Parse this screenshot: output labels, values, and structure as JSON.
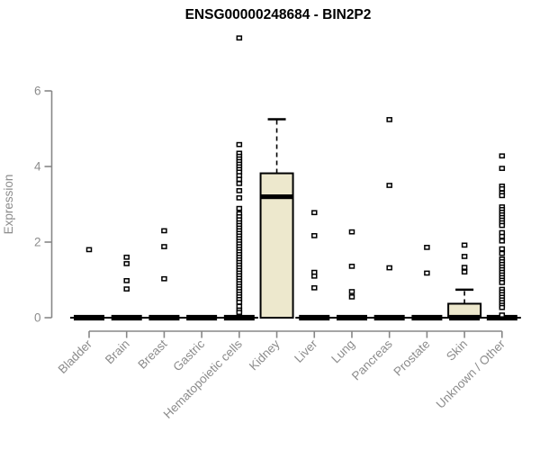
{
  "chart_data": {
    "type": "boxplot",
    "title": "ENSG00000248684 - BIN2P2",
    "ylabel": "Expression",
    "xlabel": "",
    "ylim": [
      0,
      6
    ],
    "yticks": [
      0,
      2,
      4,
      6
    ],
    "grid": false,
    "legend": null,
    "colors": {
      "box_fill": "#EDE8CD",
      "box_stroke": "#000000",
      "median": "#000000",
      "axis": "#878787",
      "tick_text": "#8c8c8c",
      "title_text": "#000000",
      "background": "#ffffff"
    },
    "categories": [
      "Bladder",
      "Brain",
      "Breast",
      "Gastric",
      "Hematopoietic cells",
      "Kidney",
      "Liver",
      "Lung",
      "Pancreas",
      "Prostate",
      "Skin",
      "Unknown / Other"
    ],
    "series": [
      {
        "category": "Bladder",
        "q1": 0,
        "median": 0,
        "q3": 0,
        "whisker_low": 0,
        "whisker_high": 0,
        "outliers": [
          1.8
        ]
      },
      {
        "category": "Brain",
        "q1": 0,
        "median": 0,
        "q3": 0,
        "whisker_low": 0,
        "whisker_high": 0,
        "outliers": [
          1.6,
          1.43,
          0.98,
          0.76
        ]
      },
      {
        "category": "Breast",
        "q1": 0,
        "median": 0,
        "q3": 0,
        "whisker_low": 0,
        "whisker_high": 0,
        "outliers": [
          2.3,
          1.88,
          1.03
        ]
      },
      {
        "category": "Gastric",
        "q1": 0,
        "median": 0,
        "q3": 0,
        "whisker_low": 0,
        "whisker_high": 0,
        "outliers": []
      },
      {
        "category": "Hematopoietic cells",
        "q1": 0,
        "median": 0,
        "q3": 0,
        "whisker_low": 0,
        "whisker_high": 0,
        "outliers": [
          7.4,
          4.58,
          4.35,
          4.27,
          4.2,
          4.13,
          4.06,
          3.99,
          3.92,
          3.85,
          3.76,
          3.66,
          3.55,
          3.36,
          3.17,
          2.89,
          2.75,
          2.67,
          2.59,
          2.51,
          2.44,
          2.37,
          2.3,
          2.23,
          2.16,
          2.09,
          2.02,
          1.95,
          1.88,
          1.81,
          1.74,
          1.67,
          1.6,
          1.53,
          1.46,
          1.39,
          1.32,
          1.25,
          1.18,
          1.11,
          1.04,
          0.97,
          0.9,
          0.83,
          0.76,
          0.69,
          0.62,
          0.55,
          0.48,
          0.41,
          0.3,
          0.2,
          0.14
        ]
      },
      {
        "category": "Kidney",
        "q1": 0,
        "median": 3.2,
        "q3": 3.82,
        "whisker_low": 0,
        "whisker_high": 5.25,
        "outliers": []
      },
      {
        "category": "Liver",
        "q1": 0,
        "median": 0,
        "q3": 0,
        "whisker_low": 0,
        "whisker_high": 0,
        "outliers": [
          2.78,
          2.17,
          1.2,
          1.1,
          0.79
        ]
      },
      {
        "category": "Lung",
        "q1": 0,
        "median": 0,
        "q3": 0,
        "whisker_low": 0,
        "whisker_high": 0,
        "outliers": [
          2.27,
          1.36,
          0.69,
          0.55
        ]
      },
      {
        "category": "Pancreas",
        "q1": 0,
        "median": 0,
        "q3": 0,
        "whisker_low": 0,
        "whisker_high": 0,
        "outliers": [
          5.24,
          3.5,
          1.32
        ]
      },
      {
        "category": "Prostate",
        "q1": 0,
        "median": 0,
        "q3": 0,
        "whisker_low": 0,
        "whisker_high": 0,
        "outliers": [
          1.86,
          1.18
        ]
      },
      {
        "category": "Skin",
        "q1": 0,
        "median": 0,
        "q3": 0.37,
        "whisker_low": 0,
        "whisker_high": 0.74,
        "outliers": [
          1.92,
          1.62,
          1.33,
          1.21
        ]
      },
      {
        "category": "Unknown / Other",
        "q1": 0,
        "median": 0,
        "q3": 0,
        "whisker_low": 0,
        "whisker_high": 0,
        "outliers": [
          4.28,
          3.95,
          3.48,
          3.41,
          3.3,
          3.23,
          2.93,
          2.86,
          2.79,
          2.72,
          2.65,
          2.58,
          2.51,
          2.44,
          2.25,
          2.15,
          2.03,
          1.82,
          1.7,
          1.55,
          1.48,
          1.41,
          1.34,
          1.27,
          1.2,
          1.13,
          1.06,
          0.99,
          0.93,
          0.75,
          0.68,
          0.61,
          0.54,
          0.47,
          0.4,
          0.33,
          0.27,
          0.07
        ]
      }
    ]
  }
}
